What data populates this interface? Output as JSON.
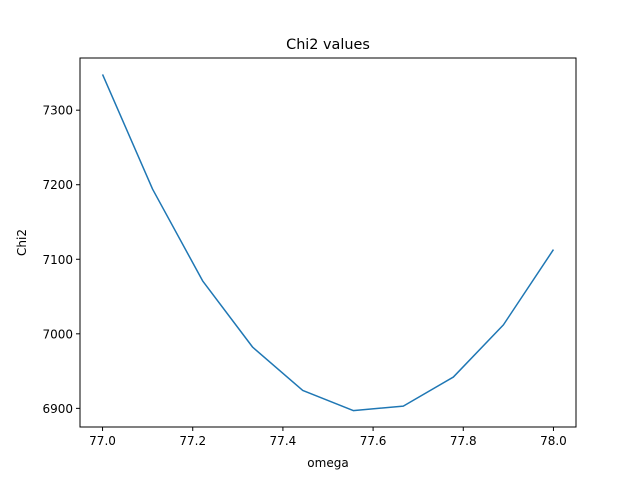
{
  "chart_data": {
    "type": "line",
    "title": "Chi2 values",
    "xlabel": "omega",
    "ylabel": "Chi2",
    "xlim": [
      76.95,
      78.05
    ],
    "ylim": [
      6875,
      7370
    ],
    "xticks": [
      77.0,
      77.2,
      77.4,
      77.6,
      77.8,
      78.0
    ],
    "xtick_labels": [
      "77.0",
      "77.2",
      "77.4",
      "77.6",
      "77.8",
      "78.0"
    ],
    "yticks": [
      6900,
      7000,
      7100,
      7200,
      7300
    ],
    "ytick_labels": [
      "6900",
      "7000",
      "7100",
      "7200",
      "7300"
    ],
    "grid": false,
    "series": [
      {
        "color": "#1f77b4",
        "x": [
          77.0,
          77.111,
          77.222,
          77.333,
          77.444,
          77.556,
          77.667,
          77.778,
          77.889,
          78.0
        ],
        "y": [
          7348,
          7194,
          7071,
          6982,
          6924,
          6897,
          6903,
          6942,
          7012,
          7113
        ]
      }
    ]
  }
}
